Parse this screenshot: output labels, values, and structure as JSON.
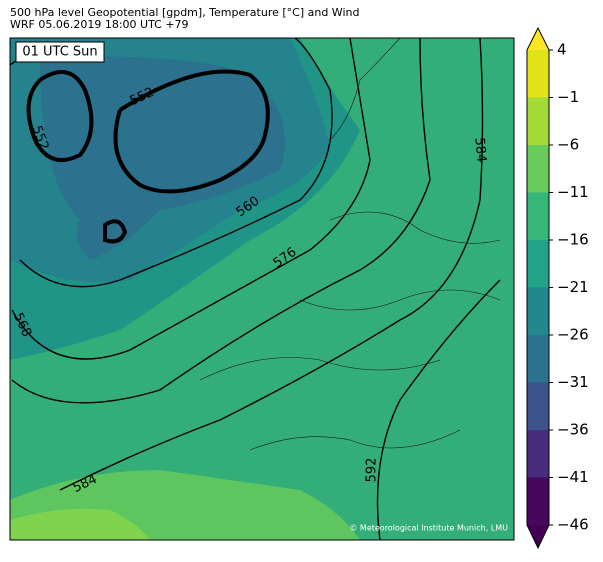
{
  "header": {
    "title": "500 hPa level Geopotential [gpdm], Temperature [°C] and Wind",
    "subtitle": "WRF 05.06.2019 18:00 UTC +79"
  },
  "map": {
    "time_label": "01 UTC Sun",
    "contour_labels": [
      552,
      552,
      560,
      576,
      568,
      584,
      584,
      592
    ],
    "credit": "© Meteorological Institute Munich, LMU"
  },
  "colorbar": {
    "lim": [
      -46,
      4
    ],
    "ticks": [
      {
        "value": 4,
        "label": "4"
      },
      {
        "value": -1,
        "label": "−1"
      },
      {
        "value": -6,
        "label": "−6"
      },
      {
        "value": -11,
        "label": "−11"
      },
      {
        "value": -16,
        "label": "−16"
      },
      {
        "value": -21,
        "label": "−21"
      },
      {
        "value": -26,
        "label": "−26"
      },
      {
        "value": -31,
        "label": "−31"
      },
      {
        "value": -36,
        "label": "−36"
      },
      {
        "value": -41,
        "label": "−41"
      },
      {
        "value": -46,
        "label": "−46"
      }
    ],
    "colors": [
      "#dfe318",
      "#a5db36",
      "#67cc5c",
      "#35b779",
      "#20a386",
      "#1f898d",
      "#2c718e",
      "#3b528b",
      "#472d7b",
      "#46085c"
    ],
    "extend_colors": {
      "max": "#fde725",
      "min": "#440154"
    }
  }
}
